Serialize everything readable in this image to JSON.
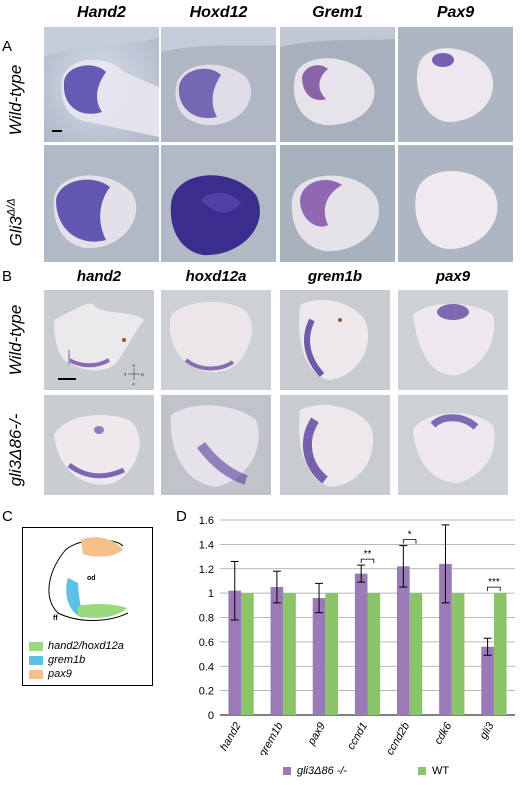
{
  "panels": {
    "A": "A",
    "B": "B",
    "C": "C",
    "D": "D"
  },
  "panel_a": {
    "columns": [
      "Hand2",
      "Hoxd12",
      "Grem1",
      "Pax9"
    ],
    "rows": [
      "Wild-type",
      "Gli3Δ/Δ"
    ],
    "row2_main": "Gli3",
    "row2_sup": "Δ/Δ"
  },
  "panel_b": {
    "columns": [
      "hand2",
      "hoxd12a",
      "grem1b",
      "pax9"
    ],
    "rows": [
      "Wild-type",
      "gli3Δ86-/-"
    ],
    "axis_labels": {
      "a": "a",
      "p": "p",
      "d": "d",
      "pr": "pr"
    }
  },
  "panel_c": {
    "labels": {
      "od": "od",
      "ff": "ff"
    },
    "legend": [
      {
        "label": "hand2/hoxd12a",
        "color": "#9bd97e"
      },
      {
        "label": "grem1b",
        "color": "#5bc2e6"
      },
      {
        "label": "pax9",
        "color": "#f6c08a"
      }
    ]
  },
  "colors": {
    "mutant": "#9b7ab8",
    "wt": "#8cc46a",
    "stain": "#5a3f9e"
  },
  "chart_data": {
    "type": "bar",
    "categories": [
      "hand2",
      "grem1b",
      "pax9",
      "ccnd1",
      "ccnd2b",
      "cdk6",
      "gli3"
    ],
    "ylim": [
      0,
      1.6
    ],
    "yticks": [
      "0",
      "0.2",
      "0.4",
      "0.6",
      "0.8",
      "1",
      "1.2",
      "1.4",
      "1.6"
    ],
    "series": [
      {
        "name": "gli3Δ86 -/-",
        "values": [
          1.02,
          1.05,
          0.96,
          1.16,
          1.22,
          1.24,
          0.56
        ],
        "errors": [
          0.24,
          0.13,
          0.12,
          0.07,
          0.17,
          0.32,
          0.07
        ]
      },
      {
        "name": "WT",
        "values": [
          1,
          1,
          1,
          1,
          1,
          1,
          1
        ]
      }
    ],
    "significance": [
      {
        "category": "ccnd1",
        "label": "**"
      },
      {
        "category": "ccnd2b",
        "label": "*"
      },
      {
        "category": "gli3",
        "label": "***"
      }
    ],
    "grid": true,
    "legend_position": "bottom"
  }
}
